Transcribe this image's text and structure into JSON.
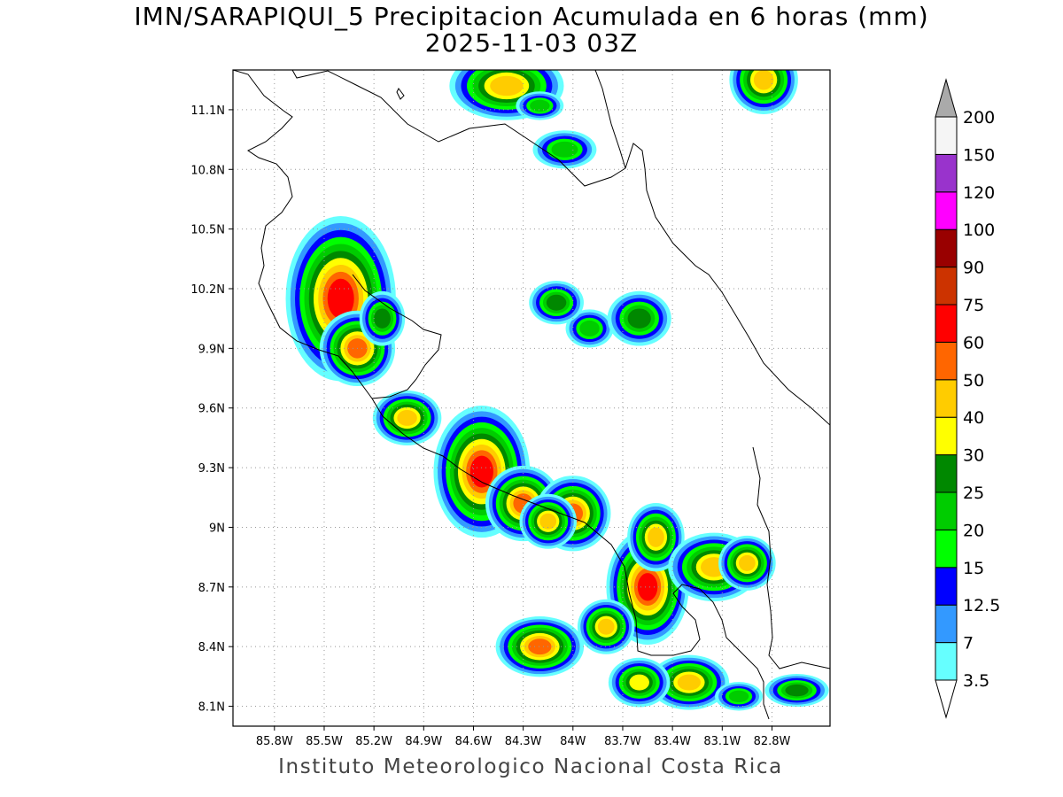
{
  "title": {
    "line1": "IMN/SARAPIQUI_5 Precipitacion Acumulada en 6 horas (mm)",
    "line2": "2025-11-03 03Z"
  },
  "footer": "Instituto Meteorologico Nacional Costa Rica",
  "map": {
    "lon_range": [
      -86.05,
      -82.45
    ],
    "lat_range": [
      8.0,
      11.3
    ],
    "lon_ticks": [
      {
        "value": -85.8,
        "label": "85.8W"
      },
      {
        "value": -85.5,
        "label": "85.5W"
      },
      {
        "value": -85.2,
        "label": "85.2W"
      },
      {
        "value": -84.9,
        "label": "84.9W"
      },
      {
        "value": -84.6,
        "label": "84.6W"
      },
      {
        "value": -84.3,
        "label": "84.3W"
      },
      {
        "value": -84.0,
        "label": "84W"
      },
      {
        "value": -83.7,
        "label": "83.7W"
      },
      {
        "value": -83.4,
        "label": "83.4W"
      },
      {
        "value": -83.1,
        "label": "83.1W"
      },
      {
        "value": -82.8,
        "label": "82.8W"
      }
    ],
    "lat_ticks": [
      {
        "value": 8.1,
        "label": "8.1N"
      },
      {
        "value": 8.4,
        "label": "8.4N"
      },
      {
        "value": 8.7,
        "label": "8.7N"
      },
      {
        "value": 9.0,
        "label": "9N"
      },
      {
        "value": 9.3,
        "label": "9.3N"
      },
      {
        "value": 9.6,
        "label": "9.6N"
      },
      {
        "value": 9.9,
        "label": "9.9N"
      },
      {
        "value": 10.2,
        "label": "10.2N"
      },
      {
        "value": 10.5,
        "label": "10.5N"
      },
      {
        "value": 10.8,
        "label": "10.8N"
      },
      {
        "value": 11.1,
        "label": "11.1N"
      }
    ],
    "grid": true
  },
  "colorbar": {
    "unit": "mm",
    "levels": [
      {
        "label": "3.5",
        "color": "#66ffff"
      },
      {
        "label": "7",
        "color": "#3399ff"
      },
      {
        "label": "12.5",
        "color": "#0000ff"
      },
      {
        "label": "15",
        "color": "#00ff00"
      },
      {
        "label": "20",
        "color": "#00cc00"
      },
      {
        "label": "25",
        "color": "#008800"
      },
      {
        "label": "30",
        "color": "#ffff00"
      },
      {
        "label": "40",
        "color": "#ffcc00"
      },
      {
        "label": "50",
        "color": "#ff6600"
      },
      {
        "label": "60",
        "color": "#ff0000"
      },
      {
        "label": "75",
        "color": "#cc3300"
      },
      {
        "label": "90",
        "color": "#990000"
      },
      {
        "label": "100",
        "color": "#ff00ff"
      },
      {
        "label": "120",
        "color": "#9933cc"
      },
      {
        "label": "150",
        "color": "#f5f5f5"
      },
      {
        "label": "200",
        "color": "#aaaaaa"
      }
    ],
    "under_color": "#ffffff",
    "over_color": "#aaaaaa"
  },
  "rain_cells": [
    {
      "lon": -84.4,
      "lat": 11.22,
      "peak": 45,
      "rx": 0.1,
      "ry": 0.05
    },
    {
      "lon": -84.2,
      "lat": 11.12,
      "peak": 20,
      "rx": 0.06,
      "ry": 0.03
    },
    {
      "lon": -84.05,
      "lat": 10.9,
      "peak": 22,
      "rx": 0.08,
      "ry": 0.04
    },
    {
      "lon": -82.85,
      "lat": 11.25,
      "peak": 45,
      "rx": 0.06,
      "ry": 0.05
    },
    {
      "lon": -85.4,
      "lat": 10.15,
      "peak": 60,
      "rx": 0.08,
      "ry": 0.1
    },
    {
      "lon": -85.3,
      "lat": 9.9,
      "peak": 55,
      "rx": 0.06,
      "ry": 0.05
    },
    {
      "lon": -85.15,
      "lat": 10.05,
      "peak": 25,
      "rx": 0.05,
      "ry": 0.05
    },
    {
      "lon": -85.0,
      "lat": 9.55,
      "peak": 40,
      "rx": 0.06,
      "ry": 0.04
    },
    {
      "lon": -84.55,
      "lat": 9.28,
      "peak": 60,
      "rx": 0.07,
      "ry": 0.08
    },
    {
      "lon": -84.3,
      "lat": 9.12,
      "peak": 50,
      "rx": 0.06,
      "ry": 0.05
    },
    {
      "lon": -84.0,
      "lat": 9.07,
      "peak": 55,
      "rx": 0.06,
      "ry": 0.05
    },
    {
      "lon": -84.15,
      "lat": 9.03,
      "peak": 40,
      "rx": 0.05,
      "ry": 0.04
    },
    {
      "lon": -83.9,
      "lat": 10.0,
      "peak": 20,
      "rx": 0.06,
      "ry": 0.04
    },
    {
      "lon": -84.1,
      "lat": 10.13,
      "peak": 25,
      "rx": 0.06,
      "ry": 0.04
    },
    {
      "lon": -83.6,
      "lat": 10.05,
      "peak": 25,
      "rx": 0.07,
      "ry": 0.05
    },
    {
      "lon": -83.55,
      "lat": 8.7,
      "peak": 60,
      "rx": 0.06,
      "ry": 0.07
    },
    {
      "lon": -83.5,
      "lat": 8.95,
      "peak": 40,
      "rx": 0.05,
      "ry": 0.05
    },
    {
      "lon": -83.15,
      "lat": 8.8,
      "peak": 40,
      "rx": 0.08,
      "ry": 0.05
    },
    {
      "lon": -82.95,
      "lat": 8.82,
      "peak": 40,
      "rx": 0.05,
      "ry": 0.04
    },
    {
      "lon": -84.2,
      "lat": 8.4,
      "peak": 50,
      "rx": 0.07,
      "ry": 0.04
    },
    {
      "lon": -83.8,
      "lat": 8.5,
      "peak": 40,
      "rx": 0.05,
      "ry": 0.04
    },
    {
      "lon": -83.3,
      "lat": 8.22,
      "peak": 40,
      "rx": 0.07,
      "ry": 0.04
    },
    {
      "lon": -83.6,
      "lat": 8.22,
      "peak": 30,
      "rx": 0.06,
      "ry": 0.04
    },
    {
      "lon": -82.65,
      "lat": 8.18,
      "peak": 25,
      "rx": 0.07,
      "ry": 0.03
    },
    {
      "lon": -83.0,
      "lat": 8.15,
      "peak": 20,
      "rx": 0.06,
      "ry": 0.03
    }
  ]
}
